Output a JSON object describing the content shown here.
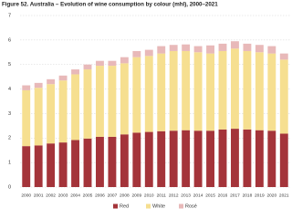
{
  "chart_data": {
    "type": "stacked-bar",
    "title": "Figure 52. Australia – Evolution of wine consumption by colour (mhl), 2000–2021",
    "categories": [
      "2000",
      "2001",
      "2002",
      "2003",
      "2004",
      "2005",
      "2006",
      "2007",
      "2008",
      "2009",
      "2010",
      "2011",
      "2012",
      "2013",
      "2014",
      "2015",
      "2016",
      "2017",
      "2018",
      "2019",
      "2020",
      "2021"
    ],
    "series": [
      {
        "name": "Red",
        "color": "#a4343a",
        "values": [
          1.67,
          1.7,
          1.78,
          1.82,
          1.92,
          1.98,
          2.05,
          2.05,
          2.15,
          2.22,
          2.25,
          2.28,
          2.3,
          2.32,
          2.3,
          2.3,
          2.35,
          2.38,
          2.35,
          2.32,
          2.3,
          2.18
        ]
      },
      {
        "name": "White",
        "color": "#f6df90",
        "values": [
          2.28,
          2.35,
          2.42,
          2.53,
          2.68,
          2.82,
          2.9,
          2.9,
          2.9,
          3.08,
          3.1,
          3.17,
          3.25,
          3.23,
          3.2,
          3.15,
          3.2,
          3.27,
          3.2,
          3.18,
          3.15,
          3.02
        ]
      },
      {
        "name": "Rosé",
        "color": "#e8b9b9",
        "values": [
          0.2,
          0.2,
          0.2,
          0.2,
          0.2,
          0.2,
          0.2,
          0.2,
          0.25,
          0.25,
          0.25,
          0.3,
          0.25,
          0.27,
          0.25,
          0.33,
          0.3,
          0.3,
          0.3,
          0.3,
          0.3,
          0.25
        ]
      }
    ],
    "ylim": [
      0,
      7
    ],
    "yticks": [
      0,
      1,
      2,
      3,
      4,
      5,
      6,
      7
    ],
    "grid": true,
    "legend": "bottom"
  }
}
